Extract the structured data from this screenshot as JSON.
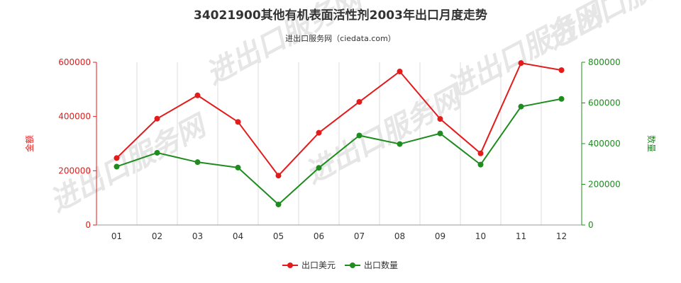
{
  "chart_data": {
    "type": "line",
    "title": "34021900其他有机表面活性剂2003年出口月度走势",
    "subtitle": "进出口服务网（ciedata.com）",
    "watermark": "进出口服务网",
    "categories": [
      "01",
      "02",
      "03",
      "04",
      "05",
      "06",
      "07",
      "08",
      "09",
      "10",
      "11",
      "12"
    ],
    "y_left": {
      "label": "金额",
      "ylim": [
        0,
        600000
      ],
      "ticks": [
        "0",
        "200000",
        "400000",
        "600000"
      ],
      "color": "#e31b1b"
    },
    "y_right": {
      "label": "数量",
      "ylim": [
        0,
        800000
      ],
      "ticks": [
        "0",
        "200000",
        "400000",
        "600000",
        "800000"
      ],
      "color": "#1e8c1e"
    },
    "grid": "vertical",
    "legend_position": "bottom",
    "series": [
      {
        "name": "出口美元",
        "axis": "left",
        "color": "#e31b1b",
        "values": [
          247000,
          392000,
          478000,
          380000,
          182000,
          340000,
          454000,
          566000,
          391000,
          264000,
          597000,
          571000
        ]
      },
      {
        "name": "出口数量",
        "axis": "right",
        "color": "#1e8c1e",
        "values": [
          287000,
          355000,
          309000,
          282000,
          101000,
          281000,
          440000,
          398000,
          450000,
          297000,
          582000,
          620000
        ]
      }
    ]
  }
}
